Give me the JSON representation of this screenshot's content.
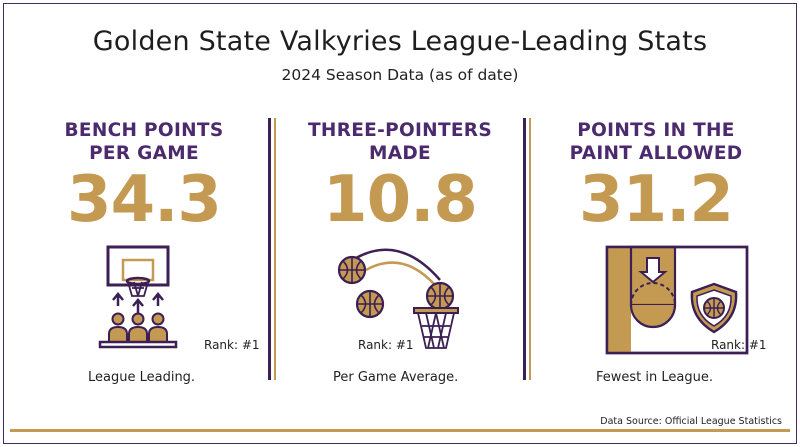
{
  "title": "Golden State Valkyries League-Leading Stats",
  "subtitle": "2024 Season Data (as of date)",
  "stats": [
    {
      "heading_line1": "BENCH POINTS",
      "heading_line2": "PER GAME",
      "value": "34.3",
      "rank": "Rank: #1",
      "caption": "League Leading.",
      "icon": "basketball-hoop-bench-icon"
    },
    {
      "heading_line1": "THREE-POINTERS",
      "heading_line2": "MADE",
      "value": "10.8",
      "rank": "Rank: #1",
      "caption": "Per Game Average.",
      "icon": "three-pointer-shots-icon"
    },
    {
      "heading_line1": "POINTS IN THE",
      "heading_line2": "PAINT ALLOWED",
      "value": "31.2",
      "rank": "Rank: #1",
      "caption": "Fewest in League.",
      "icon": "paint-defense-shield-icon"
    }
  ],
  "source": "Data Source: Official League Statistics",
  "colors": {
    "purple": "#4b2a6d",
    "dark_purple": "#3b1f55",
    "gold": "#c49a52",
    "text": "#222222"
  }
}
